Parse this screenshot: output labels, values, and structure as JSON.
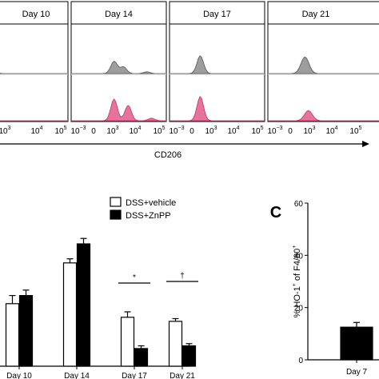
{
  "chart_data": [
    {
      "type": "area",
      "subtype": "flow-histogram",
      "panels": [
        "Day 10",
        "Day 14",
        "Day 17",
        "Day 21"
      ],
      "xlabel": "CD206",
      "x_ticks": [
        {
          "label": "10",
          "exp": "3"
        },
        {
          "label": "10",
          "exp": "4"
        },
        {
          "label": "10",
          "exp": "5"
        }
      ],
      "x_tick_prefix": {
        "label": "10",
        "exp": "−3"
      },
      "x_tick_zero": "0",
      "series": [
        {
          "color": "#8c8c8c"
        },
        {
          "color": "#e05a8a"
        }
      ],
      "curves": [
        {
          "upper": [
            [
              0.0,
              0.05
            ]
          ],
          "lower": [
            [
              0.0,
              0.0
            ]
          ]
        },
        {
          "upper": [
            [
              0.45,
              0.55
            ],
            [
              0.55,
              0.3
            ],
            [
              0.8,
              0.08
            ]
          ],
          "lower": [
            [
              0.45,
              0.85
            ],
            [
              0.6,
              0.6
            ],
            [
              0.85,
              0.1
            ]
          ]
        },
        {
          "upper": [
            [
              0.32,
              0.8
            ]
          ],
          "lower": [
            [
              0.32,
              0.95
            ]
          ]
        },
        {
          "upper": [
            [
              0.32,
              0.75
            ]
          ],
          "lower": [
            [
              0.35,
              0.4
            ]
          ]
        }
      ]
    },
    {
      "type": "bar",
      "categories": [
        "Day 10",
        "Day 14",
        "Day 17",
        "Day 21"
      ],
      "ylim": [
        0,
        60
      ],
      "yticks": [
        0,
        20,
        40,
        60
      ],
      "series": [
        {
          "name": "DSS+vehicle",
          "color": "#ffffff",
          "values": [
            23,
            38,
            18,
            16.5
          ],
          "errors": [
            3,
            1.5,
            2,
            1
          ]
        },
        {
          "name": "DSS+ZnPP",
          "color": "#000000",
          "values": [
            26,
            45,
            6.5,
            7.5
          ],
          "errors": [
            2,
            2,
            1,
            0.8
          ]
        }
      ],
      "annotations": [
        {
          "category": "Day 17",
          "text": "*"
        },
        {
          "category": "Day 21",
          "text": "†"
        }
      ]
    },
    {
      "type": "bar",
      "panel_label": "C",
      "categories": [
        "Day 7"
      ],
      "values": [
        12.5
      ],
      "errors": [
        1.8
      ],
      "ylabel_parts": [
        "% HO-1",
        "+",
        " of F4/80",
        "+"
      ],
      "ylim": [
        0,
        60
      ],
      "yticks": [
        0,
        20,
        40,
        60
      ],
      "color": "#000000"
    }
  ]
}
